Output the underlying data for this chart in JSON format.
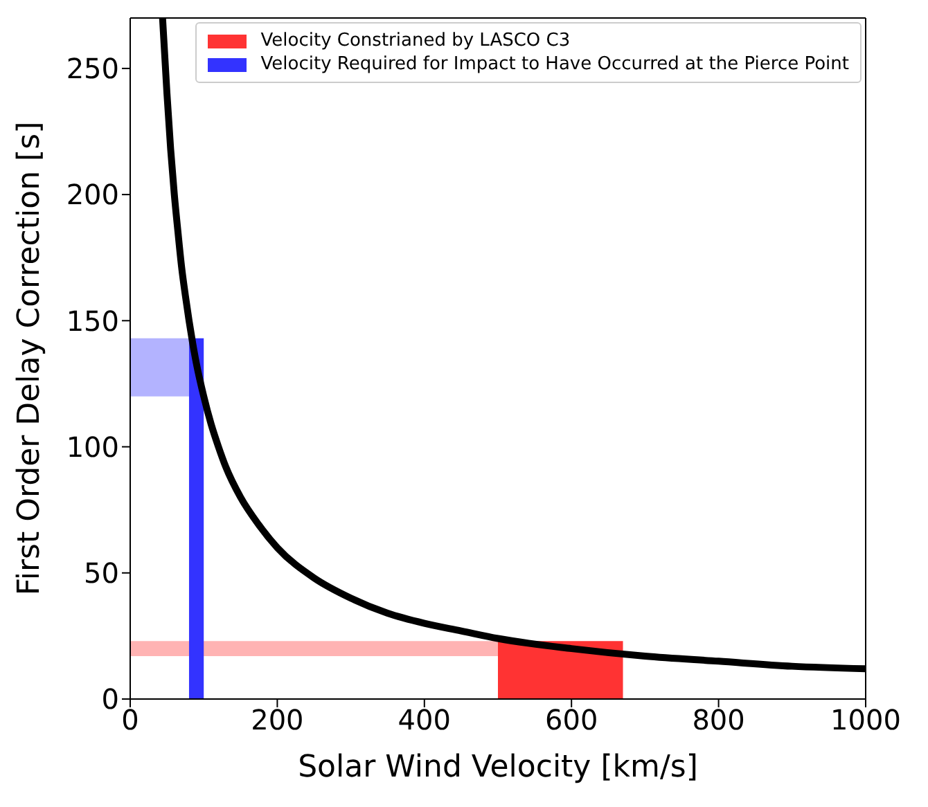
{
  "chart_data": {
    "type": "line",
    "xlabel": "Solar Wind Velocity [km/s]",
    "ylabel": "First Order Delay Correction [s]",
    "xlim": [
      0,
      1000
    ],
    "xticks": [
      0,
      200,
      400,
      600,
      800,
      1000
    ],
    "ylim": [
      0,
      270
    ],
    "yticks": [
      0,
      50,
      100,
      150,
      200,
      250
    ],
    "series": [
      {
        "color": "#000000",
        "x": [
          44,
          50,
          55,
          60,
          65,
          70,
          75,
          80,
          85,
          90,
          100,
          110,
          120,
          130,
          150,
          175,
          200,
          250,
          300,
          350,
          400,
          450,
          500,
          600,
          700,
          800,
          900,
          1000
        ],
        "values": [
          270,
          240,
          218,
          200,
          185,
          171,
          160,
          150,
          141,
          133,
          120,
          109,
          100,
          92,
          80,
          69,
          60,
          48,
          40,
          34,
          30,
          27,
          24,
          20,
          17,
          15,
          13,
          12
        ]
      }
    ],
    "bands": [
      {
        "axis": "x",
        "from": 500,
        "to": 670,
        "label": "Velocity Constrianed by LASCO C3",
        "color": "#ff3333"
      },
      {
        "axis": "y",
        "from": 17,
        "to": 23,
        "color": "#ffb3b3"
      },
      {
        "axis": "x",
        "from": 80,
        "to": 100,
        "label": "Velocity Required for Impact to Have Occurred at the Pierce Point",
        "color": "#3333ff"
      },
      {
        "axis": "y",
        "from": 120,
        "to": 143,
        "color": "#b3b3ff"
      }
    ],
    "legend": "top right",
    "marker": "none",
    "line_style": "solid"
  }
}
